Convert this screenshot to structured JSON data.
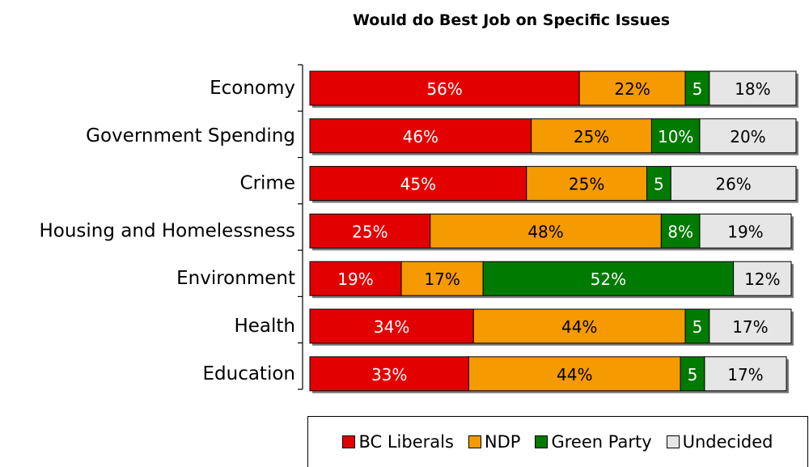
{
  "chart_data": {
    "type": "bar",
    "orientation": "horizontal",
    "stacked": true,
    "title": "Would do Best Job on Specific Issues",
    "categories": [
      "Economy",
      "Government Spending",
      "Crime",
      "Housing and Homelessness",
      "Environment",
      "Health",
      "Education"
    ],
    "series": [
      {
        "name": "BC Liberals",
        "color": "#e30000",
        "values": [
          56,
          46,
          45,
          25,
          19,
          34,
          33
        ],
        "labels": [
          "56%",
          "46%",
          "45%",
          "25%",
          "19%",
          "34%",
          "33%"
        ]
      },
      {
        "name": "NDP",
        "color": "#f59a00",
        "values": [
          22,
          25,
          25,
          48,
          17,
          44,
          44
        ],
        "labels": [
          "22%",
          "25%",
          "25%",
          "48%",
          "17%",
          "44%",
          "44%"
        ]
      },
      {
        "name": "Green Party",
        "color": "#007a00",
        "values": [
          5,
          10,
          5,
          8,
          52,
          5,
          5
        ],
        "labels": [
          "5",
          "10%",
          "5",
          "8%",
          "52%",
          "5",
          "5"
        ]
      },
      {
        "name": "Undecided",
        "color": "#e6e6e6",
        "values": [
          18,
          20,
          26,
          19,
          12,
          17,
          17
        ],
        "labels": [
          "18%",
          "20%",
          "26%",
          "19%",
          "12%",
          "17%",
          "17%"
        ]
      }
    ],
    "legend_position": "bottom",
    "grid": false
  }
}
